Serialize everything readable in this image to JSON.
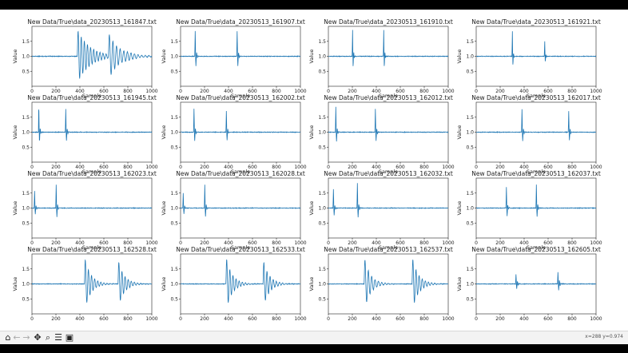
{
  "toolbar": {
    "buttons": [
      {
        "name": "home-button",
        "icon": "home-icon",
        "glyph": "⌂",
        "enabled": true
      },
      {
        "name": "back-button",
        "icon": "arrow-left-icon",
        "glyph": "←",
        "enabled": false
      },
      {
        "name": "forward-button",
        "icon": "arrow-right-icon",
        "glyph": "→",
        "enabled": false
      },
      {
        "name": "pan-button",
        "icon": "move-icon",
        "glyph": "✥",
        "enabled": true
      },
      {
        "name": "zoom-button",
        "icon": "magnifier-icon",
        "glyph": "⌕",
        "enabled": true
      },
      {
        "name": "configure-subplots-button",
        "icon": "sliders-icon",
        "glyph": "☰",
        "enabled": true
      },
      {
        "name": "save-button",
        "icon": "save-icon",
        "glyph": "▣",
        "enabled": true
      }
    ],
    "coords": "x=288  y=0.974"
  },
  "colors": {
    "line": "#1f77b4",
    "axes_border": "#222222"
  },
  "chart_data": [
    {
      "type": "line",
      "title": "New Data/True\\data_20230513_161847.txt",
      "xlabel": "Sample",
      "ylabel": "Value",
      "xlim": [
        0,
        1000
      ],
      "ylim": [
        0.0,
        2.0
      ],
      "xticks": [
        0,
        200,
        400,
        600,
        800,
        1000
      ],
      "yticks": [
        0.5,
        1.0,
        1.5
      ],
      "baseline": 1.0,
      "events": [
        [
          380,
          0.9,
          0.99,
          26
        ],
        [
          640,
          0.7,
          0.99,
          30
        ]
      ]
    },
    {
      "type": "line",
      "title": "New Data/True\\data_20230513_161907.txt",
      "xlabel": "Sample",
      "ylabel": "Value",
      "xlim": [
        0,
        1000
      ],
      "ylim": [
        0.0,
        2.0
      ],
      "xticks": [
        0,
        200,
        400,
        600,
        800,
        1000
      ],
      "yticks": [
        0.5,
        1.0,
        1.5
      ],
      "baseline": 1.0,
      "events": [
        [
          120,
          1.2,
          0.85,
          12
        ],
        [
          470,
          1.2,
          0.85,
          12
        ]
      ]
    },
    {
      "type": "line",
      "title": "New Data/True\\data_20230513_161910.txt",
      "xlabel": "Sample",
      "ylabel": "Value",
      "xlim": [
        0,
        1000
      ],
      "ylim": [
        0.0,
        2.0
      ],
      "xticks": [
        0,
        200,
        400,
        600,
        800,
        1000
      ],
      "yticks": [
        0.5,
        1.0,
        1.5
      ],
      "baseline": 1.0,
      "events": [
        [
          200,
          1.3,
          0.82,
          10
        ],
        [
          460,
          1.3,
          0.82,
          10
        ]
      ]
    },
    {
      "type": "line",
      "title": "New Data/True\\data_20230513_161921.txt",
      "xlabel": "Sample",
      "ylabel": "Value",
      "xlim": [
        0,
        1000
      ],
      "ylim": [
        0.0,
        2.0
      ],
      "xticks": [
        0,
        200,
        400,
        600,
        800,
        1000
      ],
      "yticks": [
        0.5,
        1.0,
        1.5
      ],
      "baseline": 1.0,
      "events": [
        [
          300,
          1.3,
          0.8,
          10
        ],
        [
          570,
          0.8,
          0.8,
          10
        ]
      ]
    },
    {
      "type": "line",
      "title": "New Data/True\\data_20230513_161945.txt",
      "xlabel": "Sample",
      "ylabel": "Value",
      "xlim": [
        0,
        1000
      ],
      "ylim": [
        0.0,
        2.0
      ],
      "xticks": [
        0,
        200,
        400,
        600,
        800,
        1000
      ],
      "yticks": [
        0.5,
        1.0,
        1.5
      ],
      "baseline": 1.0,
      "events": [
        [
          55,
          1.2,
          0.85,
          12
        ],
        [
          280,
          1.1,
          0.85,
          12
        ]
      ]
    },
    {
      "type": "line",
      "title": "New Data/True\\data_20230513_162002.txt",
      "xlabel": "Sample",
      "ylabel": "Value",
      "xlim": [
        0,
        1000
      ],
      "ylim": [
        0.0,
        2.0
      ],
      "xticks": [
        0,
        200,
        400,
        600,
        800,
        1000
      ],
      "yticks": [
        0.5,
        1.0,
        1.5
      ],
      "baseline": 1.0,
      "events": [
        [
          110,
          1.1,
          0.85,
          12
        ],
        [
          380,
          1.0,
          0.85,
          12
        ]
      ]
    },
    {
      "type": "line",
      "title": "New Data/True\\data_20230513_162012.txt",
      "xlabel": "Sample",
      "ylabel": "Value",
      "xlim": [
        0,
        1000
      ],
      "ylim": [
        0.0,
        2.0
      ],
      "xticks": [
        0,
        200,
        400,
        600,
        800,
        1000
      ],
      "yticks": [
        0.5,
        1.0,
        1.5
      ],
      "baseline": 1.0,
      "events": [
        [
          60,
          1.2,
          0.85,
          12
        ],
        [
          390,
          1.1,
          0.85,
          12
        ]
      ]
    },
    {
      "type": "line",
      "title": "New Data/True\\data_20230513_162017.txt",
      "xlabel": "Sample",
      "ylabel": "Value",
      "xlim": [
        0,
        1000
      ],
      "ylim": [
        0.0,
        2.0
      ],
      "xticks": [
        0,
        200,
        400,
        600,
        800,
        1000
      ],
      "yticks": [
        0.5,
        1.0,
        1.5
      ],
      "baseline": 1.0,
      "events": [
        [
          380,
          1.1,
          0.85,
          12
        ],
        [
          770,
          1.0,
          0.85,
          12
        ]
      ]
    },
    {
      "type": "line",
      "title": "New Data/True\\data_20230513_162023.txt",
      "xlabel": "Sample",
      "ylabel": "Value",
      "xlim": [
        0,
        1000
      ],
      "ylim": [
        0.0,
        2.0
      ],
      "xticks": [
        0,
        200,
        400,
        600,
        800,
        1000
      ],
      "yticks": [
        0.5,
        1.0,
        1.5
      ],
      "baseline": 1.0,
      "events": [
        [
          20,
          0.8,
          0.85,
          12
        ],
        [
          200,
          1.1,
          0.85,
          12
        ]
      ]
    },
    {
      "type": "line",
      "title": "New Data/True\\data_20230513_162028.txt",
      "xlabel": "Sample",
      "ylabel": "Value",
      "xlim": [
        0,
        1000
      ],
      "ylim": [
        0.0,
        2.0
      ],
      "xticks": [
        0,
        200,
        400,
        600,
        800,
        1000
      ],
      "yticks": [
        0.5,
        1.0,
        1.5
      ],
      "baseline": 1.0,
      "events": [
        [
          20,
          0.7,
          0.85,
          12
        ],
        [
          200,
          1.1,
          0.85,
          12
        ]
      ]
    },
    {
      "type": "line",
      "title": "New Data/True\\data_20230513_162032.txt",
      "xlabel": "Sample",
      "ylabel": "Value",
      "xlim": [
        0,
        1000
      ],
      "ylim": [
        0.0,
        2.0
      ],
      "xticks": [
        0,
        200,
        400,
        600,
        800,
        1000
      ],
      "yticks": [
        0.5,
        1.0,
        1.5
      ],
      "baseline": 1.0,
      "events": [
        [
          40,
          0.9,
          0.85,
          12
        ],
        [
          240,
          1.2,
          0.85,
          12
        ]
      ]
    },
    {
      "type": "line",
      "title": "New Data/True\\data_20230513_162037.txt",
      "xlabel": "Sample",
      "ylabel": "Value",
      "xlim": [
        0,
        1000
      ],
      "ylim": [
        0.0,
        2.0
      ],
      "xticks": [
        0,
        200,
        400,
        600,
        800,
        1000
      ],
      "yticks": [
        0.5,
        1.0,
        1.5
      ],
      "baseline": 1.0,
      "events": [
        [
          250,
          1.0,
          0.85,
          12
        ],
        [
          500,
          1.1,
          0.85,
          12
        ]
      ]
    },
    {
      "type": "line",
      "title": "New Data/True\\data_20230513_162528.txt",
      "xlabel": "Sample",
      "ylabel": "Value",
      "xlim": [
        0,
        1000
      ],
      "ylim": [
        0.0,
        2.0
      ],
      "xticks": [
        0,
        200,
        400,
        600,
        800,
        1000
      ],
      "yticks": [
        0.5,
        1.0,
        1.5
      ],
      "baseline": 1.0,
      "events": [
        [
          440,
          0.9,
          0.98,
          26
        ],
        [
          720,
          0.8,
          0.98,
          26
        ]
      ]
    },
    {
      "type": "line",
      "title": "New Data/True\\data_20230513_162533.txt",
      "xlabel": "Sample",
      "ylabel": "Value",
      "xlim": [
        0,
        1000
      ],
      "ylim": [
        0.0,
        2.0
      ],
      "xticks": [
        0,
        200,
        400,
        600,
        800,
        1000
      ],
      "yticks": [
        0.5,
        1.0,
        1.5
      ],
      "baseline": 1.0,
      "events": [
        [
          380,
          0.9,
          0.98,
          26
        ],
        [
          690,
          0.8,
          0.98,
          26
        ]
      ]
    },
    {
      "type": "line",
      "title": "New Data/True\\data_20230513_162537.txt",
      "xlabel": "Sample",
      "ylabel": "Value",
      "xlim": [
        0,
        1000
      ],
      "ylim": [
        0.0,
        2.0
      ],
      "xticks": [
        0,
        200,
        400,
        600,
        800,
        1000
      ],
      "yticks": [
        0.5,
        1.0,
        1.5
      ],
      "baseline": 1.0,
      "events": [
        [
          300,
          0.9,
          0.98,
          28
        ],
        [
          700,
          0.9,
          0.98,
          26
        ]
      ]
    },
    {
      "type": "line",
      "title": "New Data/True\\data_20230513_162605.txt",
      "xlabel": "Sample",
      "ylabel": "Value",
      "xlim": [
        0,
        1000
      ],
      "ylim": [
        0.0,
        2.0
      ],
      "xticks": [
        0,
        200,
        400,
        600,
        800,
        1000
      ],
      "yticks": [
        0.5,
        1.0,
        1.5
      ],
      "baseline": 1.0,
      "events": [
        [
          330,
          0.4,
          0.9,
          12
        ],
        [
          680,
          0.5,
          0.9,
          12
        ]
      ]
    }
  ]
}
